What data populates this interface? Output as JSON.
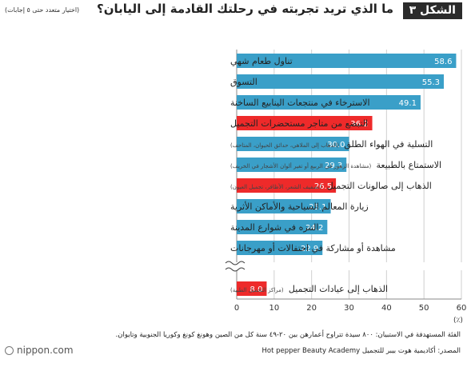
{
  "header": {
    "figure_label": "الشكل ٣",
    "title": "ما الذي تريد تجربته في رحلتك القادمة إلى اليابان؟",
    "subtitle": "(اختيار متعدد حتى ٥ إجابات)"
  },
  "chart_data": {
    "type": "bar",
    "orientation": "horizontal",
    "xlim": [
      0,
      60
    ],
    "ticks": [
      0,
      10,
      20,
      30,
      40,
      50,
      60
    ],
    "unit": "(٪)",
    "axis_break_before_last": true,
    "grid": true,
    "colors": {
      "default": "#3a9fc8",
      "highlight": "#ee2a2a"
    },
    "bars": [
      {
        "label": "تناول طعام شهي",
        "note": "",
        "value": 58.6,
        "highlight": false
      },
      {
        "label": "التسوق",
        "note": "",
        "value": 55.3,
        "highlight": false
      },
      {
        "label": "الاسترخاء في منتجعات الينابيع الساخنة",
        "note": "",
        "value": 49.1,
        "highlight": false
      },
      {
        "label": "التبضع من متاجر مستحضرات التجميل",
        "note": "",
        "value": 36.2,
        "highlight": true
      },
      {
        "label": "التسلية في الهواء الطلق",
        "note": "(الذهاب إلى الملاهي، حدائق الحيوان، المتاحف)",
        "value": 30.0,
        "display": "30.0",
        "highlight": false
      },
      {
        "label": "الاستمتاع بالطبيعة",
        "note": "(مشاهدة الزهور في الربيع أو تغير ألوان الأشجار في الخريف)",
        "value": 29.3,
        "highlight": false
      },
      {
        "label": "الذهاب إلى صالونات التجميل",
        "note": "(تصفيف الشعر، الأظافر، تجميل العيون)",
        "value": 26.5,
        "highlight": true
      },
      {
        "label": "زيارة المعالم السياحية والأماكن الأثرية",
        "note": "",
        "value": 25.1,
        "highlight": false
      },
      {
        "label": "التنزه في شوارع المدينة",
        "note": "",
        "value": 24.2,
        "highlight": false
      },
      {
        "label": "مشاهدة أو مشاركة في احتفالات أو مهرجانات",
        "note": "",
        "value": 22.9,
        "highlight": false
      },
      {
        "label": "الذهاب إلى عيادات التجميل",
        "note": "(مراكز التجميل الطبية)",
        "value": 8.0,
        "display": "8.0",
        "highlight": true
      }
    ]
  },
  "footer": {
    "note": "الفئة المستهدفة في الاستبيان: ٨٠٠ سيدة تتراوح أعمارهن بين ٢٠-٤٩ سنة كل من الصين وهونغ كونغ وكوريا الجنوبية وتايوان.",
    "source": "المصدر: أكاديمية هوت بيبر للتجميل Hot pepper Beauty Academy",
    "brand": "nippon.com"
  }
}
